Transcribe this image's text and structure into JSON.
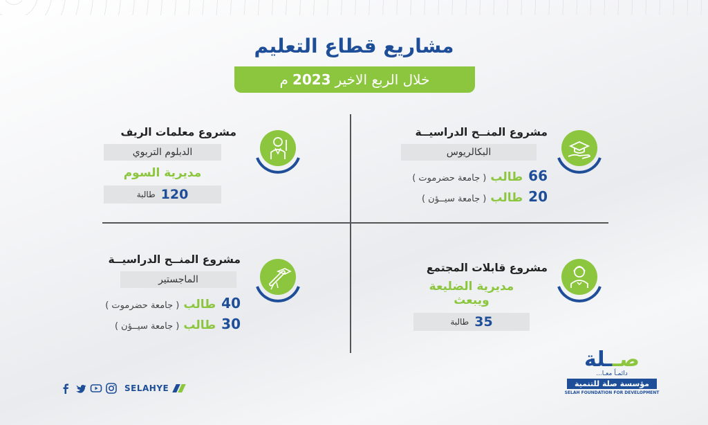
{
  "header": {
    "title": "مشاريع قطاع التعليم",
    "subtitle_prefix": "خلال الربع الاخير",
    "subtitle_year": "2023",
    "subtitle_suffix": "م"
  },
  "projects": {
    "scholarships_bachelor": {
      "title": "مشروع المنــح الدراسيــة",
      "level": "البكالريوس",
      "rows": [
        {
          "num": "66",
          "word": "طالب",
          "uni": "( جامعة حضرموت )"
        },
        {
          "num": "20",
          "word": "طالب",
          "uni": "( جامعة سيــؤن )"
        }
      ]
    },
    "rural_teachers": {
      "title": "مشروع معلمات الريف",
      "program": "الدبلوم التربوي",
      "district": "مديرية السوم",
      "count": "120",
      "count_label": "طالبة"
    },
    "midwives": {
      "title": "مشروع قابلات المجتمع",
      "district": "مديرية الضليعة ويبعث",
      "count": "35",
      "count_label": "طالبة"
    },
    "scholarships_master": {
      "title": "مشروع المنــح الدراسيــة",
      "level": "الماجستير",
      "rows": [
        {
          "num": "40",
          "word": "طالب",
          "uni": "( جامعة حضرموت )"
        },
        {
          "num": "30",
          "word": "طالب",
          "uni": "( جامعة سيــؤن )"
        }
      ]
    }
  },
  "footer": {
    "handle": "SELAHYE",
    "icons": [
      "facebook-icon",
      "twitter-icon",
      "youtube-icon",
      "instagram-icon"
    ]
  },
  "logo": {
    "mark_a": "صـ",
    "mark_b": "ـلة",
    "tagline": "دائمـاً معـا...",
    "name_ar": "مؤسسة صلة للتنمية",
    "name_en": "SELAH FOUNDATION FOR DEVELOPMENT"
  },
  "colors": {
    "brand_blue": "#1f4e99",
    "brand_green": "#8cc63f",
    "box_grey": "#e2e3e5"
  }
}
